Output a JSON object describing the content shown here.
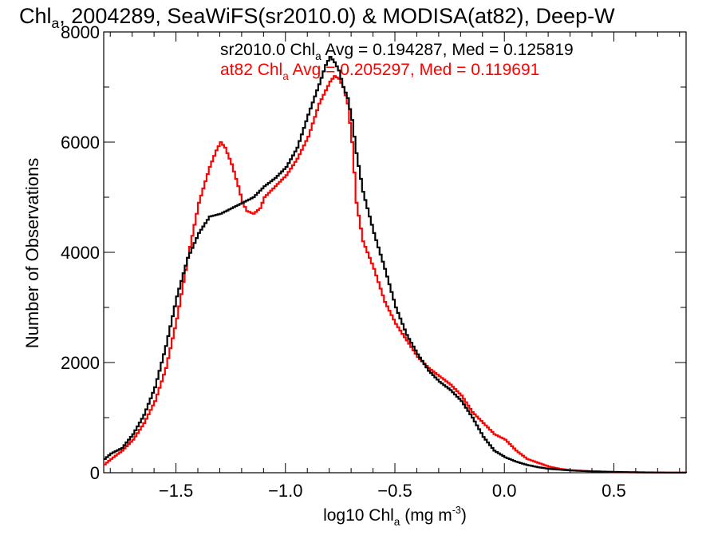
{
  "chart_data": {
    "type": "line",
    "title_parts": [
      "Chl",
      "a",
      ", 2004289, SeaWiFS(sr2010.0) & MODISA(at82), Deep-W"
    ],
    "xlabel_parts": [
      "log10 Chl",
      "a",
      " (mg m",
      "-3",
      ")"
    ],
    "ylabel": "Number of Observations",
    "xlim": [
      -1.83,
      0.83
    ],
    "ylim": [
      0,
      8000
    ],
    "x_ticks": [
      -1.5,
      -1.0,
      -0.5,
      0.0,
      0.5
    ],
    "x_tick_labels": [
      "−1.5",
      "−1.0",
      "−0.5",
      "0.0",
      "0.5"
    ],
    "y_ticks": [
      0,
      2000,
      4000,
      6000,
      8000
    ],
    "y_tick_labels": [
      "0",
      "2000",
      "4000",
      "6000",
      "8000"
    ],
    "annotations": [
      {
        "parts": [
          "sr2010.0 Chl",
          "a",
          " Avg = 0.194287, Med = 0.125819"
        ],
        "color": "#000000"
      },
      {
        "parts": [
          "at82 Chl",
          "a",
          " Avg = 0.205297, Med = 0.119691"
        ],
        "color": "#ff0000"
      }
    ],
    "series": [
      {
        "name": "sr2010.0",
        "color": "#000000",
        "x": [
          -1.83,
          -1.8,
          -1.75,
          -1.7,
          -1.65,
          -1.6,
          -1.55,
          -1.5,
          -1.45,
          -1.4,
          -1.35,
          -1.3,
          -1.25,
          -1.2,
          -1.15,
          -1.1,
          -1.05,
          -1.0,
          -0.95,
          -0.9,
          -0.85,
          -0.82,
          -0.8,
          -0.78,
          -0.76,
          -0.74,
          -0.72,
          -0.7,
          -0.68,
          -0.65,
          -0.6,
          -0.55,
          -0.5,
          -0.45,
          -0.4,
          -0.35,
          -0.3,
          -0.25,
          -0.2,
          -0.15,
          -0.1,
          -0.05,
          0.0,
          0.05,
          0.1,
          0.15,
          0.2,
          0.25,
          0.3,
          0.4,
          0.5,
          0.6,
          0.7,
          0.83
        ],
        "y": [
          250,
          350,
          450,
          700,
          1050,
          1550,
          2300,
          3200,
          3900,
          4350,
          4650,
          4700,
          4800,
          4900,
          5000,
          5200,
          5350,
          5550,
          5900,
          6500,
          7050,
          7400,
          7550,
          7450,
          7300,
          7000,
          6800,
          6400,
          5800,
          5100,
          4350,
          3700,
          3000,
          2500,
          2150,
          1850,
          1650,
          1500,
          1300,
          1000,
          650,
          400,
          280,
          200,
          140,
          100,
          70,
          55,
          40,
          25,
          15,
          8,
          4,
          2
        ]
      },
      {
        "name": "at82",
        "color": "#ff0000",
        "x": [
          -1.83,
          -1.8,
          -1.75,
          -1.7,
          -1.65,
          -1.6,
          -1.55,
          -1.5,
          -1.45,
          -1.4,
          -1.35,
          -1.32,
          -1.3,
          -1.28,
          -1.25,
          -1.22,
          -1.2,
          -1.18,
          -1.15,
          -1.12,
          -1.1,
          -1.05,
          -1.0,
          -0.95,
          -0.9,
          -0.85,
          -0.8,
          -0.78,
          -0.76,
          -0.74,
          -0.72,
          -0.7,
          -0.68,
          -0.65,
          -0.6,
          -0.55,
          -0.5,
          -0.45,
          -0.4,
          -0.35,
          -0.3,
          -0.25,
          -0.2,
          -0.15,
          -0.1,
          -0.05,
          0.0,
          0.05,
          0.1,
          0.15,
          0.2,
          0.25,
          0.3,
          0.4,
          0.5,
          0.6,
          0.7,
          0.83
        ],
        "y": [
          150,
          250,
          400,
          600,
          900,
          1300,
          1900,
          2800,
          3900,
          4900,
          5550,
          5850,
          6000,
          5900,
          5600,
          5200,
          4900,
          4750,
          4700,
          4800,
          5000,
          5200,
          5400,
          5700,
          6100,
          6700,
          7100,
          7200,
          7150,
          7000,
          6700,
          6000,
          4900,
          4200,
          3700,
          3100,
          2700,
          2400,
          2100,
          1900,
          1750,
          1600,
          1400,
          1100,
          900,
          700,
          600,
          400,
          250,
          180,
          110,
          70,
          45,
          25,
          12,
          6,
          3,
          1
        ]
      }
    ]
  }
}
